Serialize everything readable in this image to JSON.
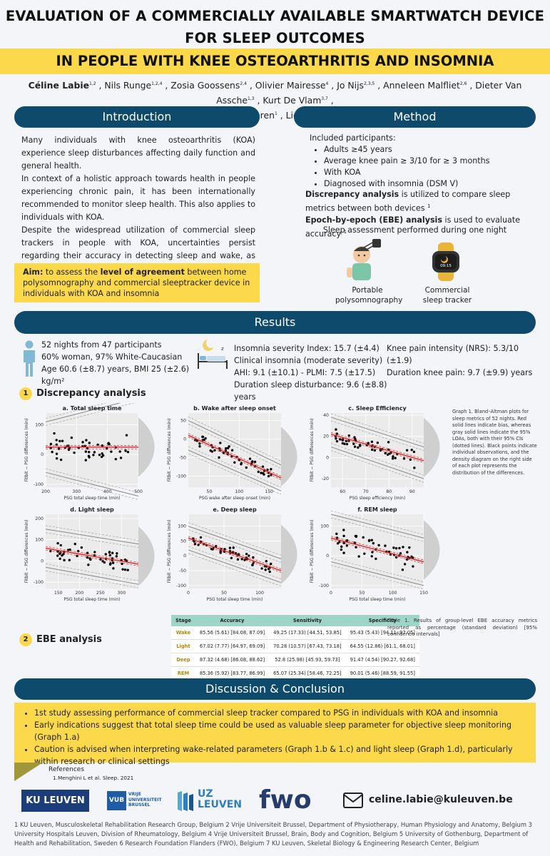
{
  "title": {
    "line1": "EVALUATION OF A COMMERCIALLY AVAILABLE SMARTWATCH DEVICE",
    "line2": "FOR SLEEP OUTCOMES",
    "band": "IN PEOPLE WITH KNEE OSTEOARTHRITIS AND INSOMNIA"
  },
  "authors": [
    {
      "name": "Céline Labie",
      "sup": "1,2",
      "bold": true
    },
    {
      "name": "Nils Runge",
      "sup": "1,2,4"
    },
    {
      "name": "Zosia Goossens",
      "sup": "2,4"
    },
    {
      "name": "Olivier Mairesse",
      "sup": "4"
    },
    {
      "name": "Jo Nijs",
      "sup": "2,3,5"
    },
    {
      "name": "Anneleen Malfliet",
      "sup": "2,6"
    },
    {
      "name": "Dieter Van Assche",
      "sup": "1,3"
    },
    {
      "name": "Kurt De Vlam",
      "sup": "3,7"
    },
    {
      "name": "Sabine Verschueren",
      "sup": "1"
    },
    {
      "name": "Liesbet De Baets",
      "sup": "2"
    }
  ],
  "intro": {
    "heading": "Introduction",
    "p1": "Many individuals with knee osteoarthritis (KOA) experience sleep disturbances affecting daily function and general health.",
    "p2": "In context of a holistic approach towards health in people experiencing chronic pain, it has been internationally recommended to monitor sleep health. This also applies to individuals with KOA.",
    "p3": "Despite the widespread utilization of commercial sleep trackers in people with KOA, uncertainties persist regarding their accuracy in detecting sleep and wake, as well as sleep stages in this specific population.",
    "aim_label": "Aim:",
    "aim_pre": "to assess the",
    "aim_bold": "level of agreement",
    "aim_post": "between home polysomnography and commercial sleeptracker device in individuals with KOA and insomnia"
  },
  "method": {
    "heading": "Method",
    "included": "Included participants:",
    "criteria": [
      "Adults ≥45 years",
      "Average knee pain ≥ 3/10 for ≥ 3 months",
      "With KOA",
      "Diagnosed with insomnia (DSM V)"
    ],
    "discrepancy_bold": "Discrepancy analysis",
    "discrepancy_rest": "is utilized to compare sleep metrics between both devices",
    "discrepancy_sup": "1",
    "ebe_bold": "Epoch-by-epoch (EBE) analysis",
    "ebe_rest": "is used to evaluate accuracy",
    "ebe_sup": "1",
    "assessment": "Sleep assessment performed during one night",
    "device1": "Portable polysomnography",
    "device2": "Commercial sleep tracker",
    "watch_time": "09:15"
  },
  "results": {
    "heading": "Results",
    "demo1": "52 nights from 47 participants",
    "demo2": "60% woman, 97% White-Caucasian",
    "demo3": "Age 60.6 (±8.7) years, BMI 25 (±2.6) kg/m²",
    "clin1": "Insomnia severity Index: 15.7 (±4.4)",
    "clin2": "Clinical insomnia (moderate severity)",
    "clin3": "AHI: 9.1 (±10.1) - PLMI: 7.5 (±17.5)",
    "clin4": "Duration sleep disturbance: 9.6 (±8.8) years",
    "pain1": "Knee pain intensity (NRS): 5.3/10 (±1.9)",
    "pain2": "Duration knee pain: 9.7 (±9.9) years",
    "sec1_num": "1",
    "sec1": "Discrepancy analysis",
    "sec2_num": "2",
    "sec2": "EBE analysis",
    "graph_caption": "Graph 1. Bland–Altman plots for sleep metrics of 52 nights. Red solid lines indicate bias, whereas gray solid lines indicate the 95% LOAs, both with their 95% CIs (dotted lines). Black points indicate individual observations, and the density diagram on the right side of each plot represents the distribution of the differences.",
    "table_caption": "Table 1. Results of group-level EBE accuracy metrics reported as percentage (standard deviation) [95% confidence intervals]",
    "table": {
      "headers": [
        "Stage",
        "Accuracy",
        "Sensitivity",
        "Specificity"
      ],
      "rows": [
        [
          "Wake",
          "85.56 (5.61) [84.08, 87.09]",
          "49.25 (17.33) [44.51, 53.85]",
          "95.43 (5.43) [94.11, 97.05]"
        ],
        [
          "Light",
          "67.02 (7.77) [64.97, 69.09]",
          "70.28 (10.57) [67.43, 73.18]",
          "64.55 (12.86) [61.1, 68.01]"
        ],
        [
          "Deep",
          "87.32 (4.68) [86.08, 88.62]",
          "52.8 (25.98) [45.93, 59.73]",
          "91.47 (4.54) [90.27, 92.68]"
        ],
        [
          "REM",
          "85.36 (5.92) [83.77, 86.99]",
          "65.07 (25.34) [58.46, 72.25]",
          "90.01 (5.46) [88.59, 91.55]"
        ]
      ]
    }
  },
  "chart_data": [
    {
      "type": "scatter",
      "title": "a. Total sleep time",
      "xlabel": "PSG total sleep time (min)",
      "ylabel": "Fitbit − PSG differences (min)",
      "xlim": [
        200,
        500
      ],
      "ylim": [
        -110,
        140
      ],
      "xticks": [
        200,
        300,
        400,
        500
      ],
      "yticks": [
        -100,
        0,
        100
      ],
      "bias": [
        25,
        25
      ],
      "loa_lower": [
        -60,
        -140
      ],
      "loa_upper": [
        110,
        190
      ]
    },
    {
      "type": "scatter",
      "title": "b. Wake after sleep onset",
      "xlabel": "PSG wake after sleep onset (min)",
      "ylabel": "Fitbit − PSG differences (min)",
      "xlim": [
        15,
        170
      ],
      "ylim": [
        -130,
        70
      ],
      "xticks": [
        50,
        100,
        150
      ],
      "yticks": [
        -100,
        -50,
        0,
        50
      ],
      "bias": [
        10,
        -105
      ],
      "loa_lower": [
        -30,
        -140
      ],
      "loa_upper": [
        50,
        -70
      ]
    },
    {
      "type": "scatter",
      "title": "c. Sleep Efficiency",
      "xlabel": "PSG sleep efficiency (min)",
      "ylabel": "Fitbit − PSG differences (min)",
      "xlim": [
        55,
        95
      ],
      "ylim": [
        -28,
        42
      ],
      "xticks": [
        60,
        70,
        80,
        90
      ],
      "yticks": [
        -20,
        0,
        20,
        40
      ],
      "bias": [
        22,
        -3
      ],
      "loa_lower": [
        10,
        -20
      ],
      "loa_upper": [
        38,
        10
      ]
    },
    {
      "type": "scatter",
      "title": "d. Light sleep",
      "xlabel": "PSG total sleep time (min)",
      "ylabel": "Fitbit − PSG differences (min)",
      "xlim": [
        120,
        340
      ],
      "ylim": [
        -130,
        220
      ],
      "xticks": [
        150,
        200,
        250,
        300
      ],
      "yticks": [
        -100,
        0,
        100,
        200
      ],
      "bias": [
        60,
        -15
      ],
      "loa_lower": [
        -30,
        -110
      ],
      "loa_upper": [
        150,
        80
      ]
    },
    {
      "type": "scatter",
      "title": "e. Deep sleep",
      "xlabel": "PSG total sleep time (min)",
      "ylabel": "Fitbit − PSG differences (min)",
      "xlim": [
        0,
        130
      ],
      "ylim": [
        -110,
        140
      ],
      "xticks": [
        0,
        50,
        100
      ],
      "yticks": [
        -100,
        -50,
        0,
        50,
        100
      ],
      "bias": [
        60,
        -50
      ],
      "loa_lower": [
        20,
        -90
      ],
      "loa_upper": [
        100,
        -10
      ]
    },
    {
      "type": "scatter",
      "title": "f. REM sleep",
      "xlabel": "PSG total sleep time (min)",
      "ylabel": "Fitbit − PSG differences (min)",
      "xlim": [
        0,
        150
      ],
      "ylim": [
        -110,
        140
      ],
      "xticks": [
        0,
        50,
        100,
        150
      ],
      "yticks": [
        -100,
        0,
        100
      ],
      "bias": [
        60,
        -20
      ],
      "loa_lower": [
        -20,
        -100
      ],
      "loa_upper": [
        140,
        60
      ]
    }
  ],
  "discussion": {
    "heading": "Discussion & Conclusion",
    "bullets": [
      "1st study assessing performance of commercial sleep tracker compared to PSG in individuals with KOA and insomnia",
      "Early indications suggest that total sleep time could be used as valuable sleep parameter for objective sleep monitoring (Graph 1.a)",
      "Caution is advised when interpreting wake-related parameters (Graph 1.b & 1.c) and light sleep (Graph 1.d), particularly within research or clinical settings"
    ]
  },
  "references": {
    "heading": "References",
    "item": "1.Menghini L et al. Sleep. 2021"
  },
  "logos": {
    "ku": "KU LEUVEN",
    "vub1": "VRIJE",
    "vub2": "UNIVERSITEIT",
    "vub3": "BRUSSEL",
    "vub_mark": "VUB",
    "uz1": "UZ",
    "uz2": "LEUVEN",
    "fwo": "fwo"
  },
  "contact": "celine.labie@kuleuven.be",
  "affiliations": "1 KU Leuven, Musculoskeletal Rehabilitation Research Group, Belgium 2 Vrije Universiteit Brussel, Department of Physiotherapy, Human Physiology and Anatomy, Belgium 3 University Hospitals Leuven, Division of Rheumatology, Belgium 4 Vrije Universiteit Brussel, Brain, Body and Cognition, Belgium 5 University of Gothenburg, Department of Health and Rehabilitation, Sweden 6 Research Foundation Flanders (FWO), Belgium 7 KU Leuven, Skeletal Biology & Engineering Research Center, Belgium",
  "colors": {
    "navy": "#0d4a6b",
    "yellow": "#fcd94b",
    "teal": "#9fd5c8",
    "bias": "#e02020"
  }
}
